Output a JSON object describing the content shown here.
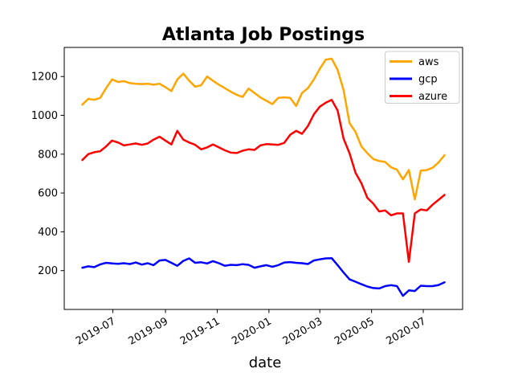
{
  "chart_data": {
    "type": "line",
    "title": "Atlanta Job Postings",
    "xlabel": "date",
    "ylabel": "",
    "xlabel_color": "#8b0000",
    "grid": false,
    "ylim": [
      0,
      1350
    ],
    "y_ticks": [
      200,
      400,
      600,
      800,
      1000,
      1200
    ],
    "x_ticks": [
      {
        "label": "2019-07",
        "date": "2019-07-01"
      },
      {
        "label": "2019-09",
        "date": "2019-09-01"
      },
      {
        "label": "2019-11",
        "date": "2019-11-01"
      },
      {
        "label": "2020-01",
        "date": "2020-01-01"
      },
      {
        "label": "2020-03",
        "date": "2020-03-01"
      },
      {
        "label": "2020-05",
        "date": "2020-05-01"
      },
      {
        "label": "2020-07",
        "date": "2020-07-01"
      }
    ],
    "legend": {
      "position": "upper right",
      "entries": [
        "aws",
        "gcp",
        "azure"
      ]
    },
    "x": [
      "2019-05-26",
      "2019-06-02",
      "2019-06-09",
      "2019-06-16",
      "2019-06-23",
      "2019-06-30",
      "2019-07-07",
      "2019-07-14",
      "2019-07-21",
      "2019-07-28",
      "2019-08-04",
      "2019-08-11",
      "2019-08-18",
      "2019-08-25",
      "2019-09-01",
      "2019-09-08",
      "2019-09-15",
      "2019-09-22",
      "2019-09-29",
      "2019-10-06",
      "2019-10-13",
      "2019-10-20",
      "2019-10-27",
      "2019-11-03",
      "2019-11-10",
      "2019-11-17",
      "2019-11-24",
      "2019-12-01",
      "2019-12-08",
      "2019-12-15",
      "2019-12-22",
      "2019-12-29",
      "2020-01-05",
      "2020-01-12",
      "2020-01-19",
      "2020-01-26",
      "2020-02-02",
      "2020-02-09",
      "2020-02-16",
      "2020-02-23",
      "2020-03-01",
      "2020-03-08",
      "2020-03-15",
      "2020-03-22",
      "2020-03-29",
      "2020-04-05",
      "2020-04-12",
      "2020-04-19",
      "2020-04-26",
      "2020-05-03",
      "2020-05-10",
      "2020-05-17",
      "2020-05-24",
      "2020-05-31",
      "2020-06-07",
      "2020-06-14",
      "2020-06-21",
      "2020-06-28",
      "2020-07-05",
      "2020-07-12",
      "2020-07-19",
      "2020-07-26"
    ],
    "series": [
      {
        "name": "aws",
        "color": "#ffa500",
        "values": [
          1055,
          1085,
          1080,
          1090,
          1140,
          1185,
          1172,
          1176,
          1166,
          1163,
          1161,
          1163,
          1158,
          1163,
          1145,
          1125,
          1185,
          1215,
          1178,
          1148,
          1155,
          1200,
          1178,
          1158,
          1140,
          1122,
          1106,
          1095,
          1138,
          1115,
          1092,
          1075,
          1058,
          1090,
          1093,
          1090,
          1048,
          1115,
          1140,
          1185,
          1240,
          1287,
          1292,
          1234,
          1130,
          960,
          915,
          840,
          805,
          775,
          765,
          760,
          732,
          720,
          670,
          718,
          567,
          715,
          718,
          730,
          758,
          795
        ]
      },
      {
        "name": "gcp",
        "color": "#0000ff",
        "values": [
          215,
          222,
          218,
          232,
          240,
          237,
          235,
          238,
          234,
          242,
          231,
          238,
          228,
          252,
          255,
          240,
          225,
          250,
          263,
          240,
          243,
          237,
          249,
          238,
          225,
          230,
          228,
          233,
          230,
          215,
          222,
          228,
          220,
          228,
          242,
          244,
          240,
          238,
          234,
          252,
          258,
          263,
          264,
          228,
          190,
          155,
          143,
          130,
          118,
          110,
          108,
          120,
          125,
          120,
          70,
          98,
          95,
          122,
          120,
          120,
          126,
          140
        ]
      },
      {
        "name": "azure",
        "color": "#ff0000",
        "values": [
          770,
          800,
          810,
          815,
          840,
          870,
          860,
          845,
          850,
          855,
          848,
          855,
          875,
          890,
          870,
          850,
          920,
          875,
          860,
          848,
          825,
          835,
          850,
          835,
          820,
          808,
          806,
          818,
          825,
          822,
          845,
          852,
          850,
          848,
          858,
          900,
          920,
          905,
          945,
          1005,
          1045,
          1065,
          1080,
          1025,
          880,
          805,
          705,
          650,
          575,
          545,
          505,
          510,
          485,
          495,
          495,
          245,
          495,
          515,
          510,
          540,
          565,
          590
        ]
      }
    ]
  }
}
